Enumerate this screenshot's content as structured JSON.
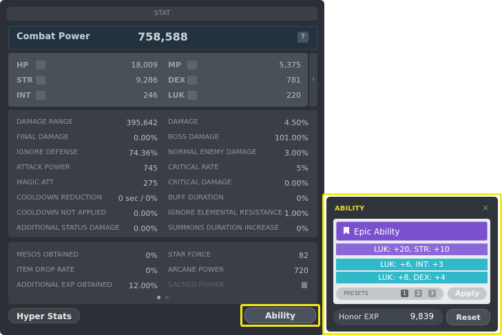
{
  "stat_window": {
    "title": "STAT",
    "combat_power": {
      "label": "Combat Power",
      "value": "758,588",
      "help": "?"
    },
    "base_stats": [
      [
        {
          "label": "HP",
          "value": "18,009"
        },
        {
          "label": "MP",
          "value": "5,375"
        }
      ],
      [
        {
          "label": "STR",
          "value": "9,286"
        },
        {
          "label": "DEX",
          "value": "781"
        }
      ],
      [
        {
          "label": "INT",
          "value": "246"
        },
        {
          "label": "LUK",
          "value": "220"
        }
      ]
    ],
    "details": [
      [
        {
          "label": "DAMAGE RANGE",
          "value": "395,642"
        },
        {
          "label": "DAMAGE",
          "value": "4.50%"
        }
      ],
      [
        {
          "label": "FINAL DAMAGE",
          "value": "0.00%"
        },
        {
          "label": "BOSS DAMAGE",
          "value": "101.00%"
        }
      ],
      [
        {
          "label": "IGNORE DEFENSE",
          "value": "74.36%"
        },
        {
          "label": "NORMAL ENEMY DAMAGE",
          "value": "3.00%"
        }
      ],
      [
        {
          "label": "ATTACK POWER",
          "value": "745"
        },
        {
          "label": "CRITICAL RATE",
          "value": "5%"
        }
      ],
      [
        {
          "label": "MAGIC ATT",
          "value": "275"
        },
        {
          "label": "CRITICAL DAMAGE",
          "value": "0.00%"
        }
      ],
      [
        {
          "label": "COOLDOWN REDUCTION",
          "value": "0 sec / 0%"
        },
        {
          "label": "BUFF DURATION",
          "value": "0%"
        }
      ],
      [
        {
          "label": "COOLDOWN NOT APPLIED",
          "value": "0.00%"
        },
        {
          "label": "IGNORE ELEMENTAL RESISTANCE",
          "value": "1.00%"
        }
      ],
      [
        {
          "label": "ADDITIONAL STATUS DAMAGE",
          "value": "0.00%"
        },
        {
          "label": "SUMMONS DURATION INCREASE",
          "value": "0%"
        }
      ]
    ],
    "extra": [
      [
        {
          "label": "MESOS OBTAINED",
          "value": "0%"
        },
        {
          "label": "STAR FORCE",
          "value": "82"
        }
      ],
      [
        {
          "label": "ITEM DROP RATE",
          "value": "0%"
        },
        {
          "label": "ARCANE POWER",
          "value": "720"
        }
      ],
      [
        {
          "label": "ADDITIONAL EXP OBTAINED",
          "value": "12.00%"
        },
        {
          "label": "SACRED POWER"
        }
      ]
    ],
    "hyper_stats_button": "Hyper Stats",
    "ability_button": "Ability"
  },
  "ability_window": {
    "title": "ABILITY",
    "grade": "Epic Ability",
    "lines": [
      "LUK: +20, STR: +10",
      "LUK: +6, INT: +3",
      "LUK: +8, DEX: +4"
    ],
    "presets_label": "PRESETS",
    "presets": [
      "1",
      "2",
      "3"
    ],
    "apply": "Apply",
    "honor_exp_label": "Honor EXP",
    "honor_exp": "9,839",
    "reset": "Reset"
  }
}
